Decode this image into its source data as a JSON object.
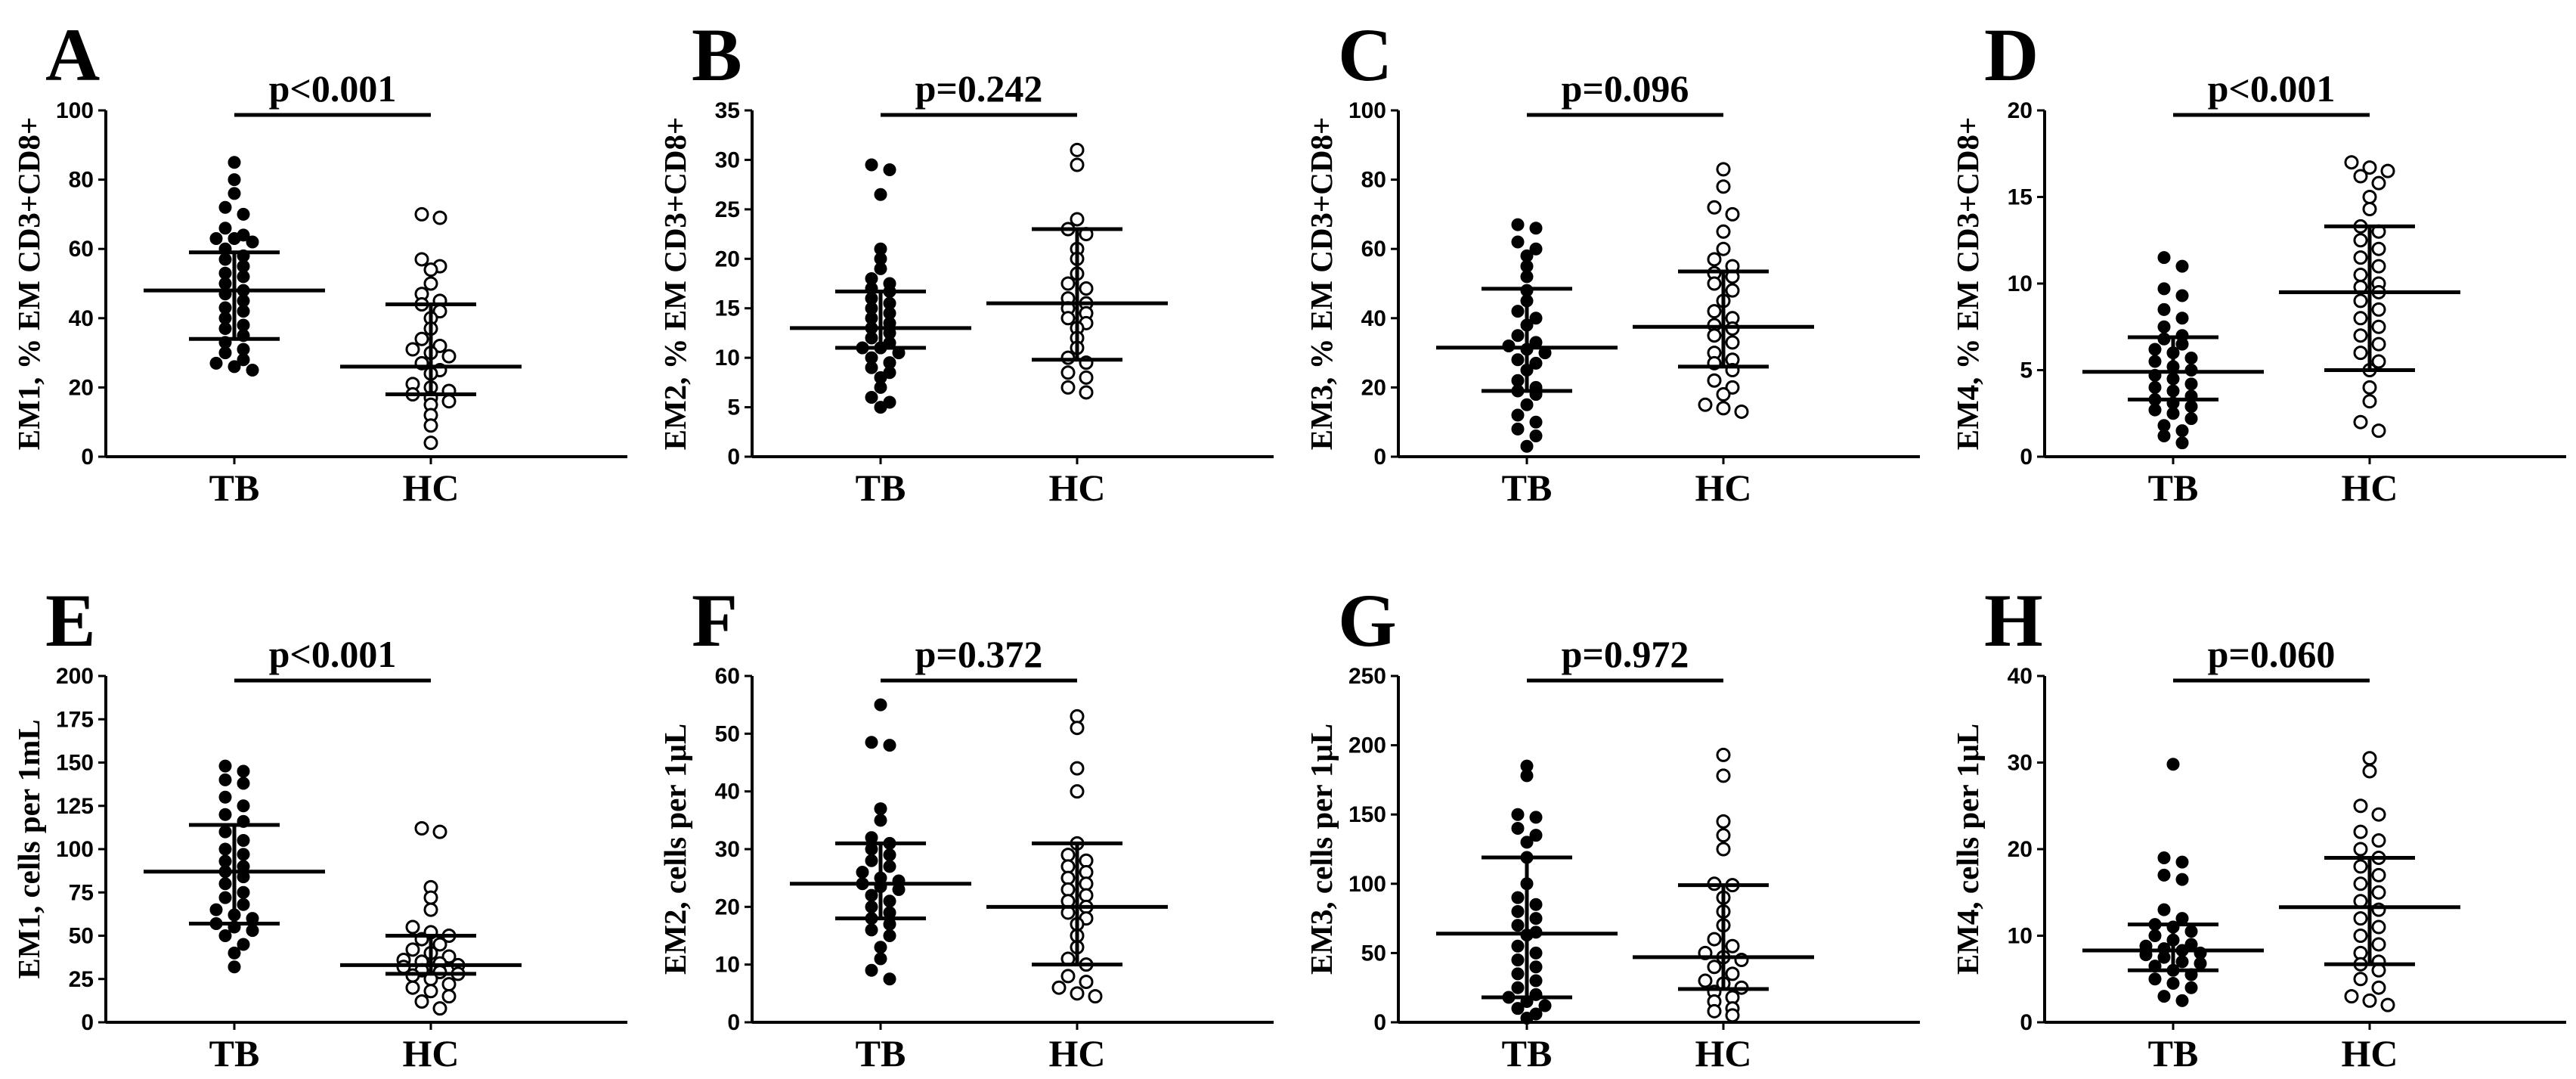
{
  "figure_title": "",
  "chart_data": [
    {
      "id": "A",
      "type": "scatter",
      "letter": "A",
      "pvalue": "p<0.001",
      "ylabel": "EM1, % EM CD3+CD8+",
      "ylim": [
        0,
        100
      ],
      "yticks": [
        "0",
        "20",
        "40",
        "60",
        "80",
        "100"
      ],
      "categories": [
        "TB",
        "HC"
      ],
      "series": [
        {
          "name": "TB",
          "filled": true,
          "median": 48,
          "q1": 34,
          "q3": 59,
          "values": [
            85,
            80,
            76,
            72,
            70,
            66,
            64,
            63,
            63,
            62,
            60,
            58,
            57,
            55,
            53,
            52,
            50,
            48,
            47,
            45,
            43,
            42,
            40,
            38,
            37,
            35,
            33,
            31,
            30,
            28,
            27,
            26,
            25
          ]
        },
        {
          "name": "HC",
          "filled": false,
          "median": 26,
          "q1": 18,
          "q3": 44,
          "values": [
            70,
            69,
            57,
            55,
            54,
            50,
            47,
            45,
            44,
            42,
            40,
            37,
            34,
            32,
            31,
            30,
            29,
            27,
            25,
            24,
            21,
            20,
            19,
            18,
            17,
            16,
            15,
            12,
            9,
            4
          ]
        }
      ]
    },
    {
      "id": "B",
      "type": "scatter",
      "letter": "B",
      "pvalue": "p=0.242",
      "ylabel": "EM2, % EM CD3+CD8+",
      "ylim": [
        0,
        35
      ],
      "yticks": [
        "0",
        "5",
        "10",
        "15",
        "20",
        "25",
        "30",
        "35"
      ],
      "categories": [
        "TB",
        "HC"
      ],
      "series": [
        {
          "name": "TB",
          "filled": true,
          "median": 13,
          "q1": 11,
          "q3": 16.7,
          "values": [
            29.5,
            29,
            26.5,
            21,
            20,
            19,
            18,
            17.5,
            17,
            16.7,
            16,
            15.5,
            15,
            14.5,
            14,
            13.5,
            13,
            12.5,
            12,
            11.5,
            11,
            11,
            10.5,
            10,
            9.5,
            9,
            8.5,
            8,
            7,
            6,
            5.5,
            5
          ]
        },
        {
          "name": "HC",
          "filled": false,
          "median": 15.5,
          "q1": 9.8,
          "q3": 23,
          "values": [
            31,
            29.5,
            24,
            23,
            22.5,
            21,
            20,
            18.5,
            17.5,
            17,
            16,
            15.5,
            15,
            14.5,
            14,
            13.5,
            13,
            12,
            11,
            10,
            9.5,
            8.5,
            8,
            7,
            6.5
          ]
        }
      ]
    },
    {
      "id": "C",
      "type": "scatter",
      "letter": "C",
      "pvalue": "p=0.096",
      "ylabel": "EM3, % EM CD3+CD8+",
      "ylim": [
        0,
        100
      ],
      "yticks": [
        "0",
        "20",
        "40",
        "60",
        "80",
        "100"
      ],
      "categories": [
        "TB",
        "HC"
      ],
      "series": [
        {
          "name": "TB",
          "filled": true,
          "median": 31.5,
          "q1": 19,
          "q3": 48.5,
          "values": [
            67,
            66,
            62,
            60,
            58,
            55,
            52,
            48,
            45,
            42,
            40,
            38,
            35,
            33,
            32,
            31,
            30,
            28,
            27,
            25,
            22,
            20,
            19,
            18,
            15,
            12,
            10,
            8,
            6,
            3
          ]
        },
        {
          "name": "HC",
          "filled": false,
          "median": 37.5,
          "q1": 26,
          "q3": 53.5,
          "values": [
            83,
            78,
            72,
            70,
            65,
            60,
            57,
            55,
            53,
            52,
            50,
            48,
            45,
            42,
            40,
            38,
            37,
            35,
            33,
            30,
            28,
            27,
            25,
            22,
            20,
            18,
            15,
            14,
            13
          ]
        }
      ]
    },
    {
      "id": "D",
      "type": "scatter",
      "letter": "D",
      "pvalue": "p<0.001",
      "ylabel": "EM4, % EM CD3+CD8+",
      "ylim": [
        0,
        20
      ],
      "yticks": [
        "0",
        "5",
        "10",
        "15",
        "20"
      ],
      "categories": [
        "TB",
        "HC"
      ],
      "series": [
        {
          "name": "TB",
          "filled": true,
          "median": 4.9,
          "q1": 3.3,
          "q3": 6.9,
          "values": [
            11.5,
            11,
            9.7,
            9.3,
            8.5,
            8,
            7.5,
            7,
            6.8,
            6.5,
            6.2,
            6,
            5.7,
            5.5,
            5.2,
            5,
            4.7,
            4.5,
            4.2,
            4,
            3.8,
            3.5,
            3.3,
            3.1,
            2.9,
            2.7,
            2.5,
            2.2,
            1.8,
            1.5,
            1.2,
            0.8
          ]
        },
        {
          "name": "HC",
          "filled": false,
          "median": 9.5,
          "q1": 5,
          "q3": 13.3,
          "values": [
            17,
            16.7,
            16.5,
            16.2,
            15.8,
            15,
            14.3,
            13.3,
            13,
            12.5,
            12,
            11.5,
            11,
            10.5,
            10,
            9.8,
            9.5,
            9,
            8.5,
            8,
            7.5,
            7,
            6.5,
            6,
            5.5,
            5,
            4,
            3.2,
            2,
            1.5
          ]
        }
      ]
    },
    {
      "id": "E",
      "type": "scatter",
      "letter": "E",
      "pvalue": "p<0.001",
      "ylabel": "EM1, cells per 1mL",
      "ylim": [
        0,
        200
      ],
      "yticks": [
        "0",
        "25",
        "50",
        "75",
        "100",
        "125",
        "150",
        "175",
        "200"
      ],
      "categories": [
        "TB",
        "HC"
      ],
      "series": [
        {
          "name": "TB",
          "filled": true,
          "median": 87,
          "q1": 57,
          "q3": 114,
          "values": [
            148,
            145,
            140,
            138,
            130,
            125,
            120,
            116,
            110,
            105,
            100,
            97,
            93,
            90,
            87,
            84,
            80,
            75,
            72,
            68,
            65,
            62,
            60,
            57,
            55,
            53,
            50,
            45,
            40,
            32
          ]
        },
        {
          "name": "HC",
          "filled": false,
          "median": 33,
          "q1": 28,
          "q3": 50,
          "values": [
            112,
            110,
            78,
            72,
            65,
            55,
            52,
            50,
            48,
            45,
            42,
            40,
            38,
            36,
            35,
            34,
            33,
            32,
            30,
            29,
            28,
            27,
            25,
            22,
            20,
            18,
            15,
            12,
            8
          ]
        }
      ]
    },
    {
      "id": "F",
      "type": "scatter",
      "letter": "F",
      "pvalue": "p=0.372",
      "ylabel": "EM2, cells per 1μL",
      "ylim": [
        0,
        60
      ],
      "yticks": [
        "0",
        "10",
        "20",
        "30",
        "40",
        "50",
        "60"
      ],
      "categories": [
        "TB",
        "HC"
      ],
      "series": [
        {
          "name": "TB",
          "filled": true,
          "median": 24,
          "q1": 18,
          "q3": 31,
          "values": [
            55,
            48.5,
            48,
            37,
            35,
            32,
            31,
            30,
            29,
            28,
            27,
            26,
            25,
            24.5,
            24,
            23.5,
            23,
            22,
            21,
            20,
            19,
            18,
            17,
            16,
            15,
            13,
            11,
            9,
            7.5
          ]
        },
        {
          "name": "HC",
          "filled": false,
          "median": 20,
          "q1": 10,
          "q3": 31,
          "values": [
            53,
            51,
            44,
            40,
            31,
            29,
            28,
            27,
            26,
            25,
            24,
            23,
            22,
            21,
            20,
            19,
            18,
            17,
            15,
            13,
            11,
            10,
            8,
            7,
            6,
            5,
            4.5
          ]
        }
      ]
    },
    {
      "id": "G",
      "type": "scatter",
      "letter": "G",
      "pvalue": "p=0.972",
      "ylabel": "EM3, cells per 1μL",
      "ylim": [
        0,
        250
      ],
      "yticks": [
        "0",
        "50",
        "100",
        "150",
        "200",
        "250"
      ],
      "categories": [
        "TB",
        "HC"
      ],
      "series": [
        {
          "name": "TB",
          "filled": true,
          "median": 64,
          "q1": 18,
          "q3": 119,
          "values": [
            185,
            178,
            150,
            148,
            140,
            135,
            130,
            119,
            100,
            90,
            85,
            80,
            75,
            70,
            65,
            63,
            55,
            50,
            45,
            40,
            35,
            30,
            25,
            20,
            18,
            15,
            12,
            10,
            6,
            3
          ]
        },
        {
          "name": "HC",
          "filled": false,
          "median": 47,
          "q1": 24,
          "q3": 99,
          "values": [
            193,
            178,
            145,
            135,
            125,
            100,
            99,
            90,
            80,
            70,
            60,
            55,
            50,
            47,
            45,
            40,
            35,
            30,
            28,
            25,
            22,
            18,
            15,
            10,
            8,
            5
          ]
        }
      ]
    },
    {
      "id": "H",
      "type": "scatter",
      "letter": "H",
      "pvalue": "p=0.060",
      "ylabel": "EM4, cells per 1μL",
      "ylim": [
        0,
        40
      ],
      "yticks": [
        "0",
        "10",
        "20",
        "30",
        "40"
      ],
      "categories": [
        "TB",
        "HC"
      ],
      "series": [
        {
          "name": "TB",
          "filled": true,
          "median": 8.3,
          "q1": 6,
          "q3": 11.3,
          "values": [
            29.8,
            19,
            18.5,
            17,
            16.5,
            13,
            12,
            11.3,
            11,
            10.5,
            10,
            9.5,
            9,
            8.8,
            8.5,
            8.3,
            8,
            7.8,
            7.5,
            7,
            6.8,
            6.5,
            6,
            5.5,
            5,
            4.5,
            4,
            3,
            2.5
          ]
        },
        {
          "name": "HC",
          "filled": false,
          "median": 13.3,
          "q1": 6.7,
          "q3": 19,
          "values": [
            30.5,
            29,
            25,
            24,
            22,
            21,
            20,
            19,
            18,
            17,
            16,
            15,
            14,
            13,
            12,
            11,
            10,
            9,
            8,
            7,
            6.7,
            6,
            5,
            4,
            3,
            2.5,
            2
          ]
        }
      ]
    }
  ]
}
